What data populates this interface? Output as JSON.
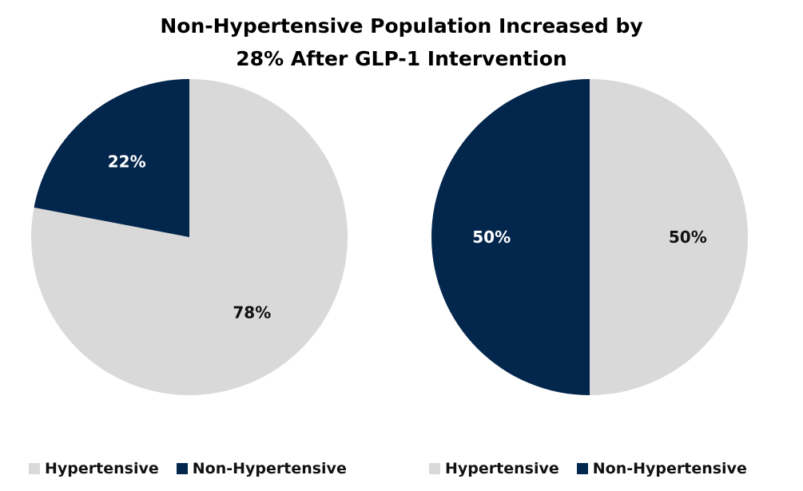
{
  "title": {
    "line1": "Non-Hypertensive Population Increased by",
    "line2": "28% After GLP-1 Intervention"
  },
  "colors": {
    "hypertensive": "#d9d9d9",
    "non_hypertensive": "#03264c",
    "label_on_light": "#111111",
    "label_on_dark": "#ffffff"
  },
  "chart_data": [
    {
      "type": "pie",
      "slices": [
        {
          "name": "Hypertensive",
          "value": 78,
          "label": "78%"
        },
        {
          "name": "Non-Hypertensive",
          "value": 22,
          "label": "22%"
        }
      ],
      "legend": [
        "Hypertensive",
        "Non-Hypertensive"
      ],
      "legend_position": "bottom"
    },
    {
      "type": "pie",
      "slices": [
        {
          "name": "Hypertensive",
          "value": 50,
          "label": "50%"
        },
        {
          "name": "Non-Hypertensive",
          "value": 50,
          "label": "50%"
        }
      ],
      "legend": [
        "Hypertensive",
        "Non-Hypertensive"
      ],
      "legend_position": "bottom"
    }
  ]
}
